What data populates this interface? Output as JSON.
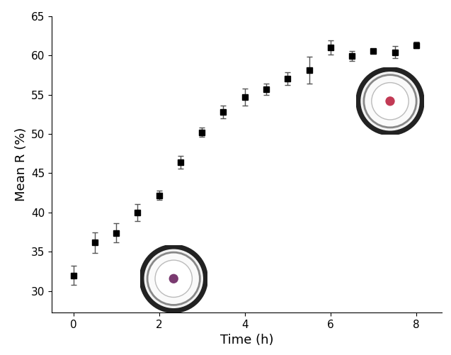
{
  "chart_data": {
    "type": "scatter",
    "x_label": "Time (h)",
    "y_label": "Mean R (%)",
    "x": [
      0,
      0.5,
      1,
      1.5,
      2,
      2.5,
      3,
      3.5,
      4,
      4.5,
      5,
      5.5,
      6,
      6.5,
      7,
      7.5,
      8
    ],
    "values": [
      32.0,
      36.2,
      37.4,
      40.0,
      42.2,
      46.4,
      50.2,
      52.8,
      54.7,
      55.7,
      57.0,
      58.1,
      61.0,
      59.9,
      60.5,
      60.4,
      61.3
    ],
    "errors": [
      1.2,
      1.3,
      1.2,
      1.1,
      0.6,
      0.8,
      0.6,
      0.8,
      1.1,
      0.7,
      0.8,
      1.7,
      0.9,
      0.6,
      0.2,
      0.8,
      0.4
    ],
    "color": "#000000",
    "marker": "square",
    "xlim": [
      -0.5,
      8.6
    ],
    "xticks": [
      0,
      2,
      4,
      6,
      8
    ],
    "ylim": [
      27.3,
      65
    ],
    "yticks": [
      30,
      35,
      40,
      45,
      50,
      55,
      60,
      65
    ],
    "grid": false
  }
}
